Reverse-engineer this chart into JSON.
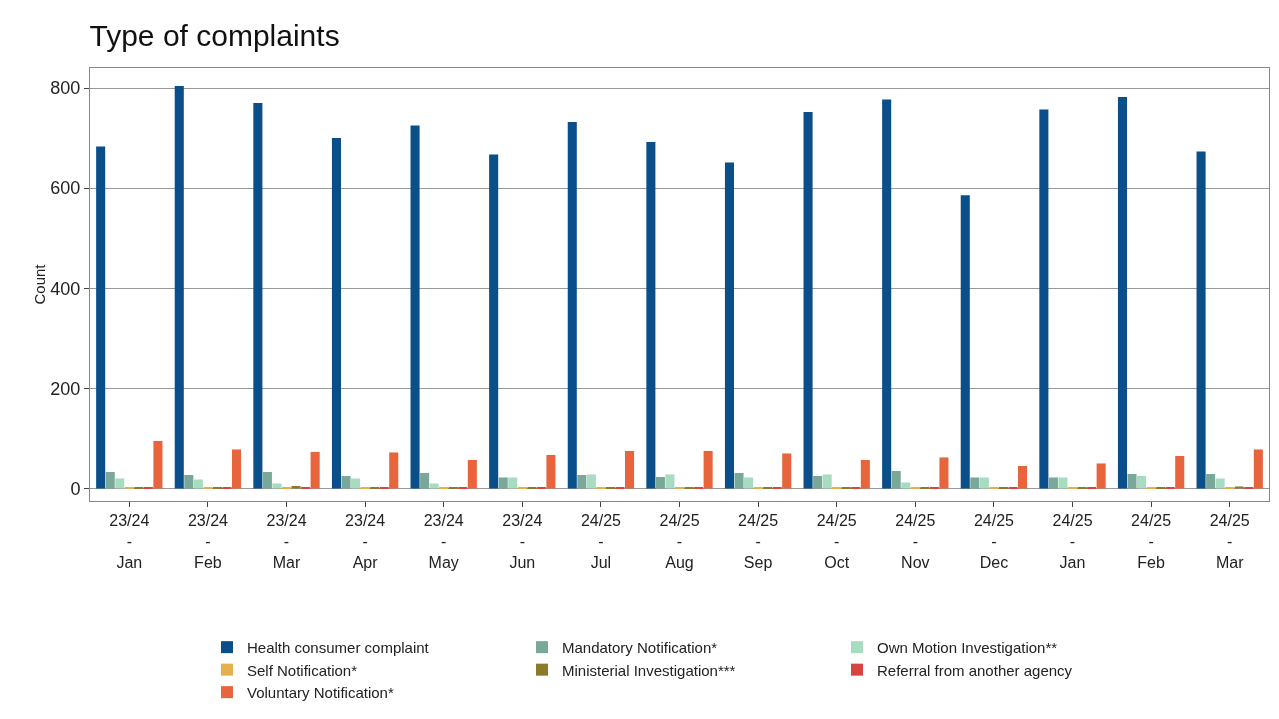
{
  "chart_data": {
    "type": "bar",
    "title": "Type of complaints",
    "ylabel": "Count",
    "categories": [
      "23/24\n-\nJan",
      "23/24\n-\nFeb",
      "23/24\n-\nMar",
      "23/24\n-\nApr",
      "23/24\n-\nMay",
      "23/24\n-\nJun",
      "24/25\n-\nJul",
      "24/25\n-\nAug",
      "24/25\n-\nSep",
      "24/25\n-\nOct",
      "24/25\n-\nNov",
      "24/25\n-\nDec",
      "24/25\n-\nJan",
      "24/25\n-\nFeb",
      "24/25\n-\nMar"
    ],
    "series": [
      {
        "name": "Health consumer complaint",
        "color": "#0b4f8a",
        "values": [
          683,
          804,
          770,
          700,
          725,
          667,
          732,
          692,
          651,
          752,
          777,
          586,
          757,
          782,
          673
        ]
      },
      {
        "name": "Mandatory Notification*",
        "color": "#7aa898",
        "values": [
          33,
          27,
          33,
          25,
          31,
          22,
          27,
          23,
          31,
          25,
          35,
          22,
          22,
          29,
          29
        ]
      },
      {
        "name": "Own Motion Investigation**",
        "color": "#a8dcc0",
        "values": [
          20,
          18,
          10,
          20,
          10,
          22,
          28,
          28,
          22,
          28,
          12,
          22,
          22,
          25,
          20
        ]
      },
      {
        "name": "Self Notification*",
        "color": "#e8b048",
        "values": [
          2,
          2,
          2,
          1,
          2,
          1,
          1,
          1,
          1,
          1,
          1,
          1,
          2,
          2,
          2
        ]
      },
      {
        "name": "Ministerial Investigation***",
        "color": "#8a7a2a",
        "values": [
          1,
          3,
          5,
          1,
          1,
          1,
          1,
          1,
          1,
          1,
          1,
          1,
          1,
          1,
          4
        ]
      },
      {
        "name": "Referral from another agency",
        "color": "#d9453c",
        "values": [
          1,
          1,
          1,
          1,
          1,
          1,
          1,
          1,
          1,
          1,
          1,
          1,
          1,
          1,
          1
        ]
      },
      {
        "name": "Voluntary Notification*",
        "color": "#e8643c",
        "values": [
          95,
          78,
          73,
          72,
          57,
          67,
          75,
          75,
          70,
          57,
          62,
          45,
          50,
          65,
          78
        ]
      }
    ],
    "ylim": [
      -25,
      840
    ],
    "yticks": [
      0,
      200,
      400,
      600,
      800
    ],
    "grid": "y",
    "legend": "bottom"
  }
}
